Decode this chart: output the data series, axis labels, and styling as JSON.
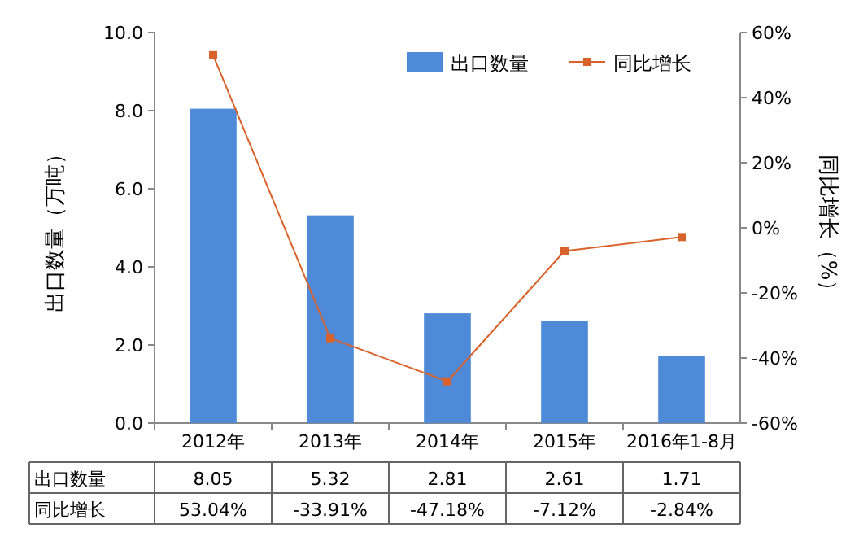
{
  "chart_data": {
    "type": "bar",
    "categories": [
      "2012年",
      "2013年",
      "2014年",
      "2015年",
      "2016年1-8月"
    ],
    "series": [
      {
        "name": "出口数量",
        "color": "#4e8ad8",
        "values": [
          8.05,
          5.32,
          2.81,
          2.61,
          1.71
        ],
        "value_labels": [
          "8.05",
          "5.32",
          "2.81",
          "2.61",
          "1.71"
        ]
      },
      {
        "name": "同比增长",
        "type": "line",
        "axis": "y2",
        "color": "#d9622b",
        "values": [
          53.04,
          -33.91,
          -47.18,
          -7.12,
          -2.84
        ],
        "value_labels": [
          "53.04%",
          "-33.91%",
          "-47.18%",
          "-7.12%",
          "-2.84%"
        ]
      }
    ],
    "ylabel": "出口数量（万吨）",
    "y2label": "同比增长（%）",
    "ylim": [
      0,
      10
    ],
    "yticks": [
      {
        "value": 0,
        "label": "0.0"
      },
      {
        "value": 2,
        "label": "2.0"
      },
      {
        "value": 4,
        "label": "4.0"
      },
      {
        "value": 6,
        "label": "6.0"
      },
      {
        "value": 8,
        "label": "8.0"
      },
      {
        "value": 10,
        "label": "10.0"
      }
    ],
    "y2lim": [
      -60,
      60
    ],
    "y2ticks": [
      {
        "value": -60,
        "label": "-60%"
      },
      {
        "value": -40,
        "label": "-40%"
      },
      {
        "value": -20,
        "label": "-20%"
      },
      {
        "value": 0,
        "label": "0%"
      },
      {
        "value": 20,
        "label": "20%"
      },
      {
        "value": 40,
        "label": "40%"
      },
      {
        "value": 60,
        "label": "60%"
      }
    ],
    "legend": "top right",
    "marker": "square"
  }
}
